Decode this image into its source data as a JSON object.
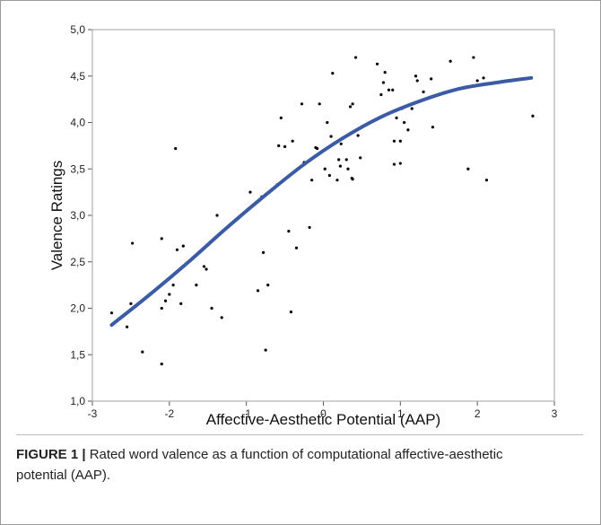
{
  "caption": {
    "label": "FIGURE 1 |",
    "text": " Rated word valence as a function of computational affective-aesthetic potential (AAP)."
  },
  "chart_data": {
    "type": "scatter",
    "xlabel": "Affective-Aesthetic Potential (AAP)",
    "ylabel": "Valence Ratings",
    "xlim": [
      -3,
      3
    ],
    "ylim": [
      1.0,
      5.0
    ],
    "x_ticks": [
      "-3",
      "-2",
      "-1",
      "0",
      "1",
      "2",
      "3"
    ],
    "y_ticks": [
      "1,0",
      "1,5",
      "2,0",
      "2,5",
      "3,0",
      "3,5",
      "4,0",
      "4,5",
      "5,0"
    ],
    "grid": false,
    "colors": {
      "points": "#000000",
      "fit_line": "#3b5ba5",
      "plot_border": "#b0b0b0"
    },
    "series": [
      {
        "type": "scatter",
        "points": [
          [
            -2.75,
            1.95
          ],
          [
            -2.55,
            1.8
          ],
          [
            -2.5,
            2.05
          ],
          [
            -2.48,
            2.7
          ],
          [
            -2.35,
            1.53
          ],
          [
            -2.1,
            1.4
          ],
          [
            -2.1,
            2.0
          ],
          [
            -2.1,
            2.75
          ],
          [
            -2.05,
            2.08
          ],
          [
            -2.0,
            2.15
          ],
          [
            -1.95,
            2.25
          ],
          [
            -1.92,
            3.72
          ],
          [
            -1.9,
            2.63
          ],
          [
            -1.85,
            2.05
          ],
          [
            -1.82,
            2.67
          ],
          [
            -1.65,
            2.25
          ],
          [
            -1.55,
            2.45
          ],
          [
            -1.52,
            2.42
          ],
          [
            -1.45,
            2.0
          ],
          [
            -1.38,
            3.0
          ],
          [
            -1.32,
            1.9
          ],
          [
            -0.95,
            3.25
          ],
          [
            -0.85,
            2.19
          ],
          [
            -0.8,
            3.2
          ],
          [
            -0.78,
            2.6
          ],
          [
            -0.75,
            1.55
          ],
          [
            -0.72,
            2.25
          ],
          [
            -0.6,
            3.33
          ],
          [
            -0.58,
            3.75
          ],
          [
            -0.55,
            4.05
          ],
          [
            -0.5,
            3.74
          ],
          [
            -0.45,
            2.83
          ],
          [
            -0.42,
            1.96
          ],
          [
            -0.4,
            3.8
          ],
          [
            -0.35,
            2.65
          ],
          [
            -0.28,
            4.2
          ],
          [
            -0.25,
            3.57
          ],
          [
            -0.18,
            2.87
          ],
          [
            -0.15,
            3.38
          ],
          [
            -0.1,
            3.73
          ],
          [
            -0.08,
            3.72
          ],
          [
            -0.05,
            4.2
          ],
          [
            0.02,
            3.5
          ],
          [
            0.05,
            4.0
          ],
          [
            0.08,
            3.43
          ],
          [
            0.1,
            3.85
          ],
          [
            0.12,
            4.53
          ],
          [
            0.18,
            3.38
          ],
          [
            0.2,
            3.6
          ],
          [
            0.22,
            3.53
          ],
          [
            0.23,
            3.77
          ],
          [
            0.25,
            3.83
          ],
          [
            0.3,
            3.6
          ],
          [
            0.32,
            3.5
          ],
          [
            0.35,
            4.17
          ],
          [
            0.37,
            3.4
          ],
          [
            0.38,
            3.39
          ],
          [
            0.38,
            4.2
          ],
          [
            0.42,
            4.7
          ],
          [
            0.45,
            3.86
          ],
          [
            0.48,
            3.62
          ],
          [
            0.5,
            3.95
          ],
          [
            0.7,
            4.63
          ],
          [
            0.75,
            4.3
          ],
          [
            0.78,
            4.43
          ],
          [
            0.8,
            4.54
          ],
          [
            0.85,
            4.35
          ],
          [
            0.9,
            4.35
          ],
          [
            0.92,
            3.55
          ],
          [
            0.92,
            3.8
          ],
          [
            0.95,
            4.05
          ],
          [
            1.0,
            3.56
          ],
          [
            1.0,
            3.8
          ],
          [
            1.02,
            4.15
          ],
          [
            1.05,
            4.0
          ],
          [
            1.1,
            3.92
          ],
          [
            1.15,
            4.15
          ],
          [
            1.2,
            4.5
          ],
          [
            1.22,
            4.45
          ],
          [
            1.3,
            4.33
          ],
          [
            1.4,
            4.47
          ],
          [
            1.42,
            3.95
          ],
          [
            1.65,
            4.66
          ],
          [
            1.88,
            3.5
          ],
          [
            1.95,
            4.7
          ],
          [
            2.0,
            4.45
          ],
          [
            2.08,
            4.48
          ],
          [
            2.12,
            3.38
          ],
          [
            2.72,
            4.07
          ]
        ]
      },
      {
        "type": "line",
        "points": [
          [
            -2.75,
            1.82
          ],
          [
            -2.25,
            2.15
          ],
          [
            -1.75,
            2.5
          ],
          [
            -1.25,
            2.87
          ],
          [
            -0.75,
            3.22
          ],
          [
            -0.25,
            3.55
          ],
          [
            0.25,
            3.83
          ],
          [
            0.75,
            4.06
          ],
          [
            1.25,
            4.23
          ],
          [
            1.75,
            4.36
          ],
          [
            2.25,
            4.43
          ],
          [
            2.7,
            4.48
          ]
        ]
      }
    ]
  }
}
